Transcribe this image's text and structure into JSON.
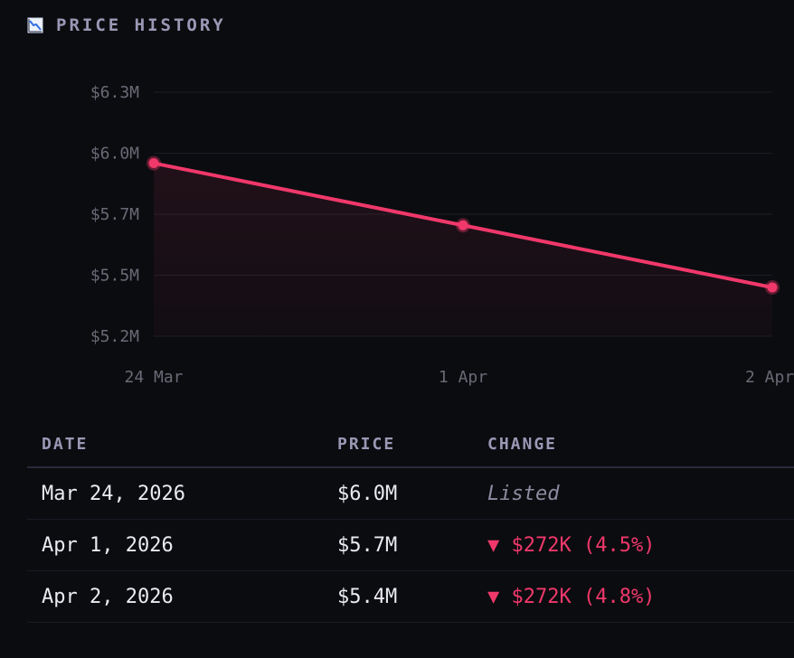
{
  "header": {
    "title": "PRICE HISTORY",
    "icon": "chart-decreasing-icon"
  },
  "colors": {
    "line": "#f0386b",
    "point": "#f0386b",
    "grid": "#1c1d24",
    "down": "#f0386b"
  },
  "chart_data": {
    "type": "line",
    "title": "PRICE HISTORY",
    "xlabel": "",
    "ylabel": "",
    "categories": [
      "24 Mar",
      "1 Apr",
      "2 Apr"
    ],
    "series": [
      {
        "name": "Price",
        "values": [
          5.98,
          5.7,
          5.42
        ]
      }
    ],
    "ylim": [
      5.2,
      6.3
    ],
    "yticks": [
      6.3,
      6.0,
      5.7,
      5.5,
      5.2
    ],
    "ytick_labels": [
      "$6.3M",
      "$6.0M",
      "$5.7M",
      "$5.5M",
      "$5.2M"
    ],
    "grid": true
  },
  "table": {
    "columns": [
      "DATE",
      "PRICE",
      "CHANGE"
    ],
    "rows": [
      {
        "date": "Mar 24, 2026",
        "price": "$6.0M",
        "change": "Listed",
        "direction": "none"
      },
      {
        "date": "Apr 1, 2026",
        "price": "$5.7M",
        "change": "▼ $272K (4.5%)",
        "direction": "down"
      },
      {
        "date": "Apr 2, 2026",
        "price": "$5.4M",
        "change": "▼ $272K (4.8%)",
        "direction": "down"
      }
    ]
  }
}
